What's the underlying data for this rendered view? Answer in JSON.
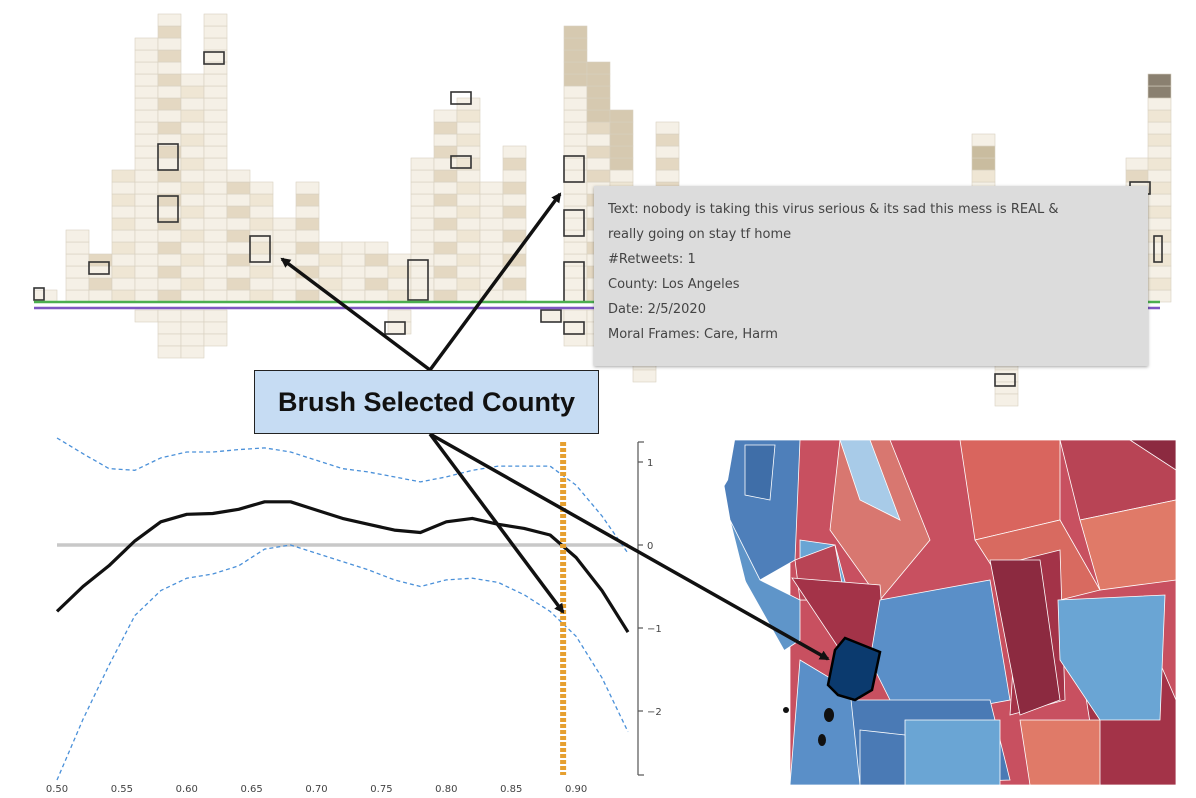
{
  "colors": {
    "histogram_cell_light": "#f5f0e6",
    "histogram_cell_border": "#d8d0c0",
    "histogram_cell_dark": "#7a7160",
    "green_line": "#4caf50",
    "purple_line": "#7e57c2",
    "curve": "#111111",
    "confidence_band": "#4a90d9",
    "reference_line": "#c8c8c8",
    "marker_line": "#e6a030",
    "callout_bg": "#c6dcf3",
    "tooltip_bg": "#dcdcdc",
    "map_selected": "#0b3a6e"
  },
  "tooltip": {
    "text_line1": "Text: nobody is taking this virus serious & its sad this mess is REAL &",
    "text_line2": "really going on stay tf home",
    "retweets": "#Retweets: 1",
    "county": "County: Los Angeles",
    "date": "Date: 2/5/2020",
    "moral_frames": "Moral Frames: Care, Harm"
  },
  "callout": {
    "label": "Brush Selected County"
  },
  "chart_data": {
    "type": "line",
    "x_ticks": [
      "0.50",
      "0.55",
      "0.60",
      "0.65",
      "0.70",
      "0.75",
      "0.80",
      "0.85",
      "0.90"
    ],
    "y_ticks": [
      "1",
      "0",
      "−1",
      "−2"
    ],
    "xlim": [
      0.5,
      0.94
    ],
    "ylim": [
      -2.5,
      1.1
    ],
    "series": [
      {
        "role": "estimate",
        "x": [
          0.5,
          0.52,
          0.54,
          0.56,
          0.58,
          0.6,
          0.62,
          0.64,
          0.66,
          0.68,
          0.7,
          0.72,
          0.74,
          0.76,
          0.78,
          0.8,
          0.82,
          0.84,
          0.86,
          0.88,
          0.9,
          0.92,
          0.94
        ],
        "y": [
          -0.8,
          -0.5,
          -0.25,
          0.05,
          0.28,
          0.37,
          0.38,
          0.43,
          0.52,
          0.52,
          0.42,
          0.32,
          0.25,
          0.18,
          0.15,
          0.28,
          0.32,
          0.25,
          0.2,
          0.12,
          -0.15,
          -0.55,
          -1.05
        ]
      },
      {
        "role": "upper-band",
        "x": [
          0.5,
          0.52,
          0.54,
          0.56,
          0.58,
          0.6,
          0.62,
          0.64,
          0.66,
          0.68,
          0.7,
          0.72,
          0.74,
          0.76,
          0.78,
          0.8,
          0.82,
          0.84,
          0.86,
          0.88,
          0.9,
          0.92,
          0.94
        ],
        "y": [
          1.45,
          1.1,
          0.92,
          0.9,
          1.05,
          1.12,
          1.12,
          1.15,
          1.17,
          1.12,
          1.02,
          0.92,
          0.88,
          0.82,
          0.76,
          0.82,
          0.9,
          0.95,
          0.95,
          0.95,
          0.72,
          0.35,
          -0.1
        ]
      },
      {
        "role": "lower-band",
        "x": [
          0.5,
          0.52,
          0.54,
          0.56,
          0.58,
          0.6,
          0.62,
          0.64,
          0.66,
          0.68,
          0.7,
          0.72,
          0.74,
          0.76,
          0.78,
          0.8,
          0.82,
          0.84,
          0.86,
          0.88,
          0.9,
          0.92,
          0.94
        ],
        "y": [
          -3.1,
          -2.1,
          -1.45,
          -0.85,
          -0.55,
          -0.4,
          -0.35,
          -0.25,
          -0.05,
          0,
          -0.1,
          -0.2,
          -0.3,
          -0.42,
          -0.5,
          -0.42,
          -0.4,
          -0.45,
          -0.6,
          -0.8,
          -1.1,
          -1.6,
          -2.25
        ]
      }
    ],
    "reference_y": 0,
    "marker_x": 0.89
  }
}
